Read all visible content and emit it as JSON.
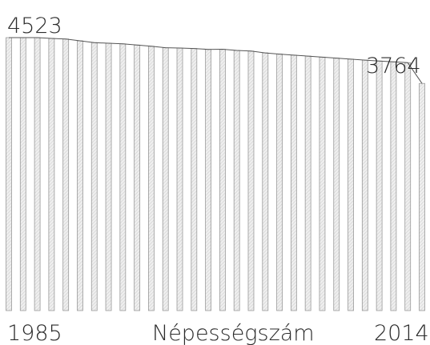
{
  "chart_data": {
    "type": "area",
    "title": "",
    "xlabel": "Népességszám",
    "ylabel": "",
    "x_start_label": "1985",
    "x_end_label": "2014",
    "first_value_label": "4523",
    "last_value_label": "3764",
    "x": [
      1985,
      1986,
      1987,
      1988,
      1989,
      1990,
      1991,
      1992,
      1993,
      1994,
      1995,
      1996,
      1997,
      1998,
      1999,
      2000,
      2001,
      2002,
      2003,
      2004,
      2005,
      2006,
      2007,
      2008,
      2009,
      2010,
      2011,
      2012,
      2013,
      2014
    ],
    "values": [
      4523,
      4523,
      4523,
      4510,
      4500,
      4470,
      4440,
      4430,
      4420,
      4400,
      4380,
      4355,
      4350,
      4343,
      4328,
      4330,
      4310,
      4300,
      4270,
      4250,
      4233,
      4217,
      4200,
      4183,
      4167,
      4150,
      4135,
      4122,
      4108,
      3764
    ],
    "bar_years": [
      1985,
      1986,
      1987,
      1988,
      1989,
      1990,
      1991,
      1992,
      1993,
      1994,
      1995,
      1996,
      1997,
      1998,
      1999,
      2000,
      2001,
      2002,
      2003,
      2004,
      2005,
      2006,
      2007,
      2008,
      2009,
      2010,
      2011,
      2012,
      2013,
      2014
    ],
    "colors": {
      "bar_fill": "#d9d9d9",
      "bar_stroke": "#9a9a9a",
      "text": "#2b2b2b",
      "line": "#555555"
    }
  }
}
